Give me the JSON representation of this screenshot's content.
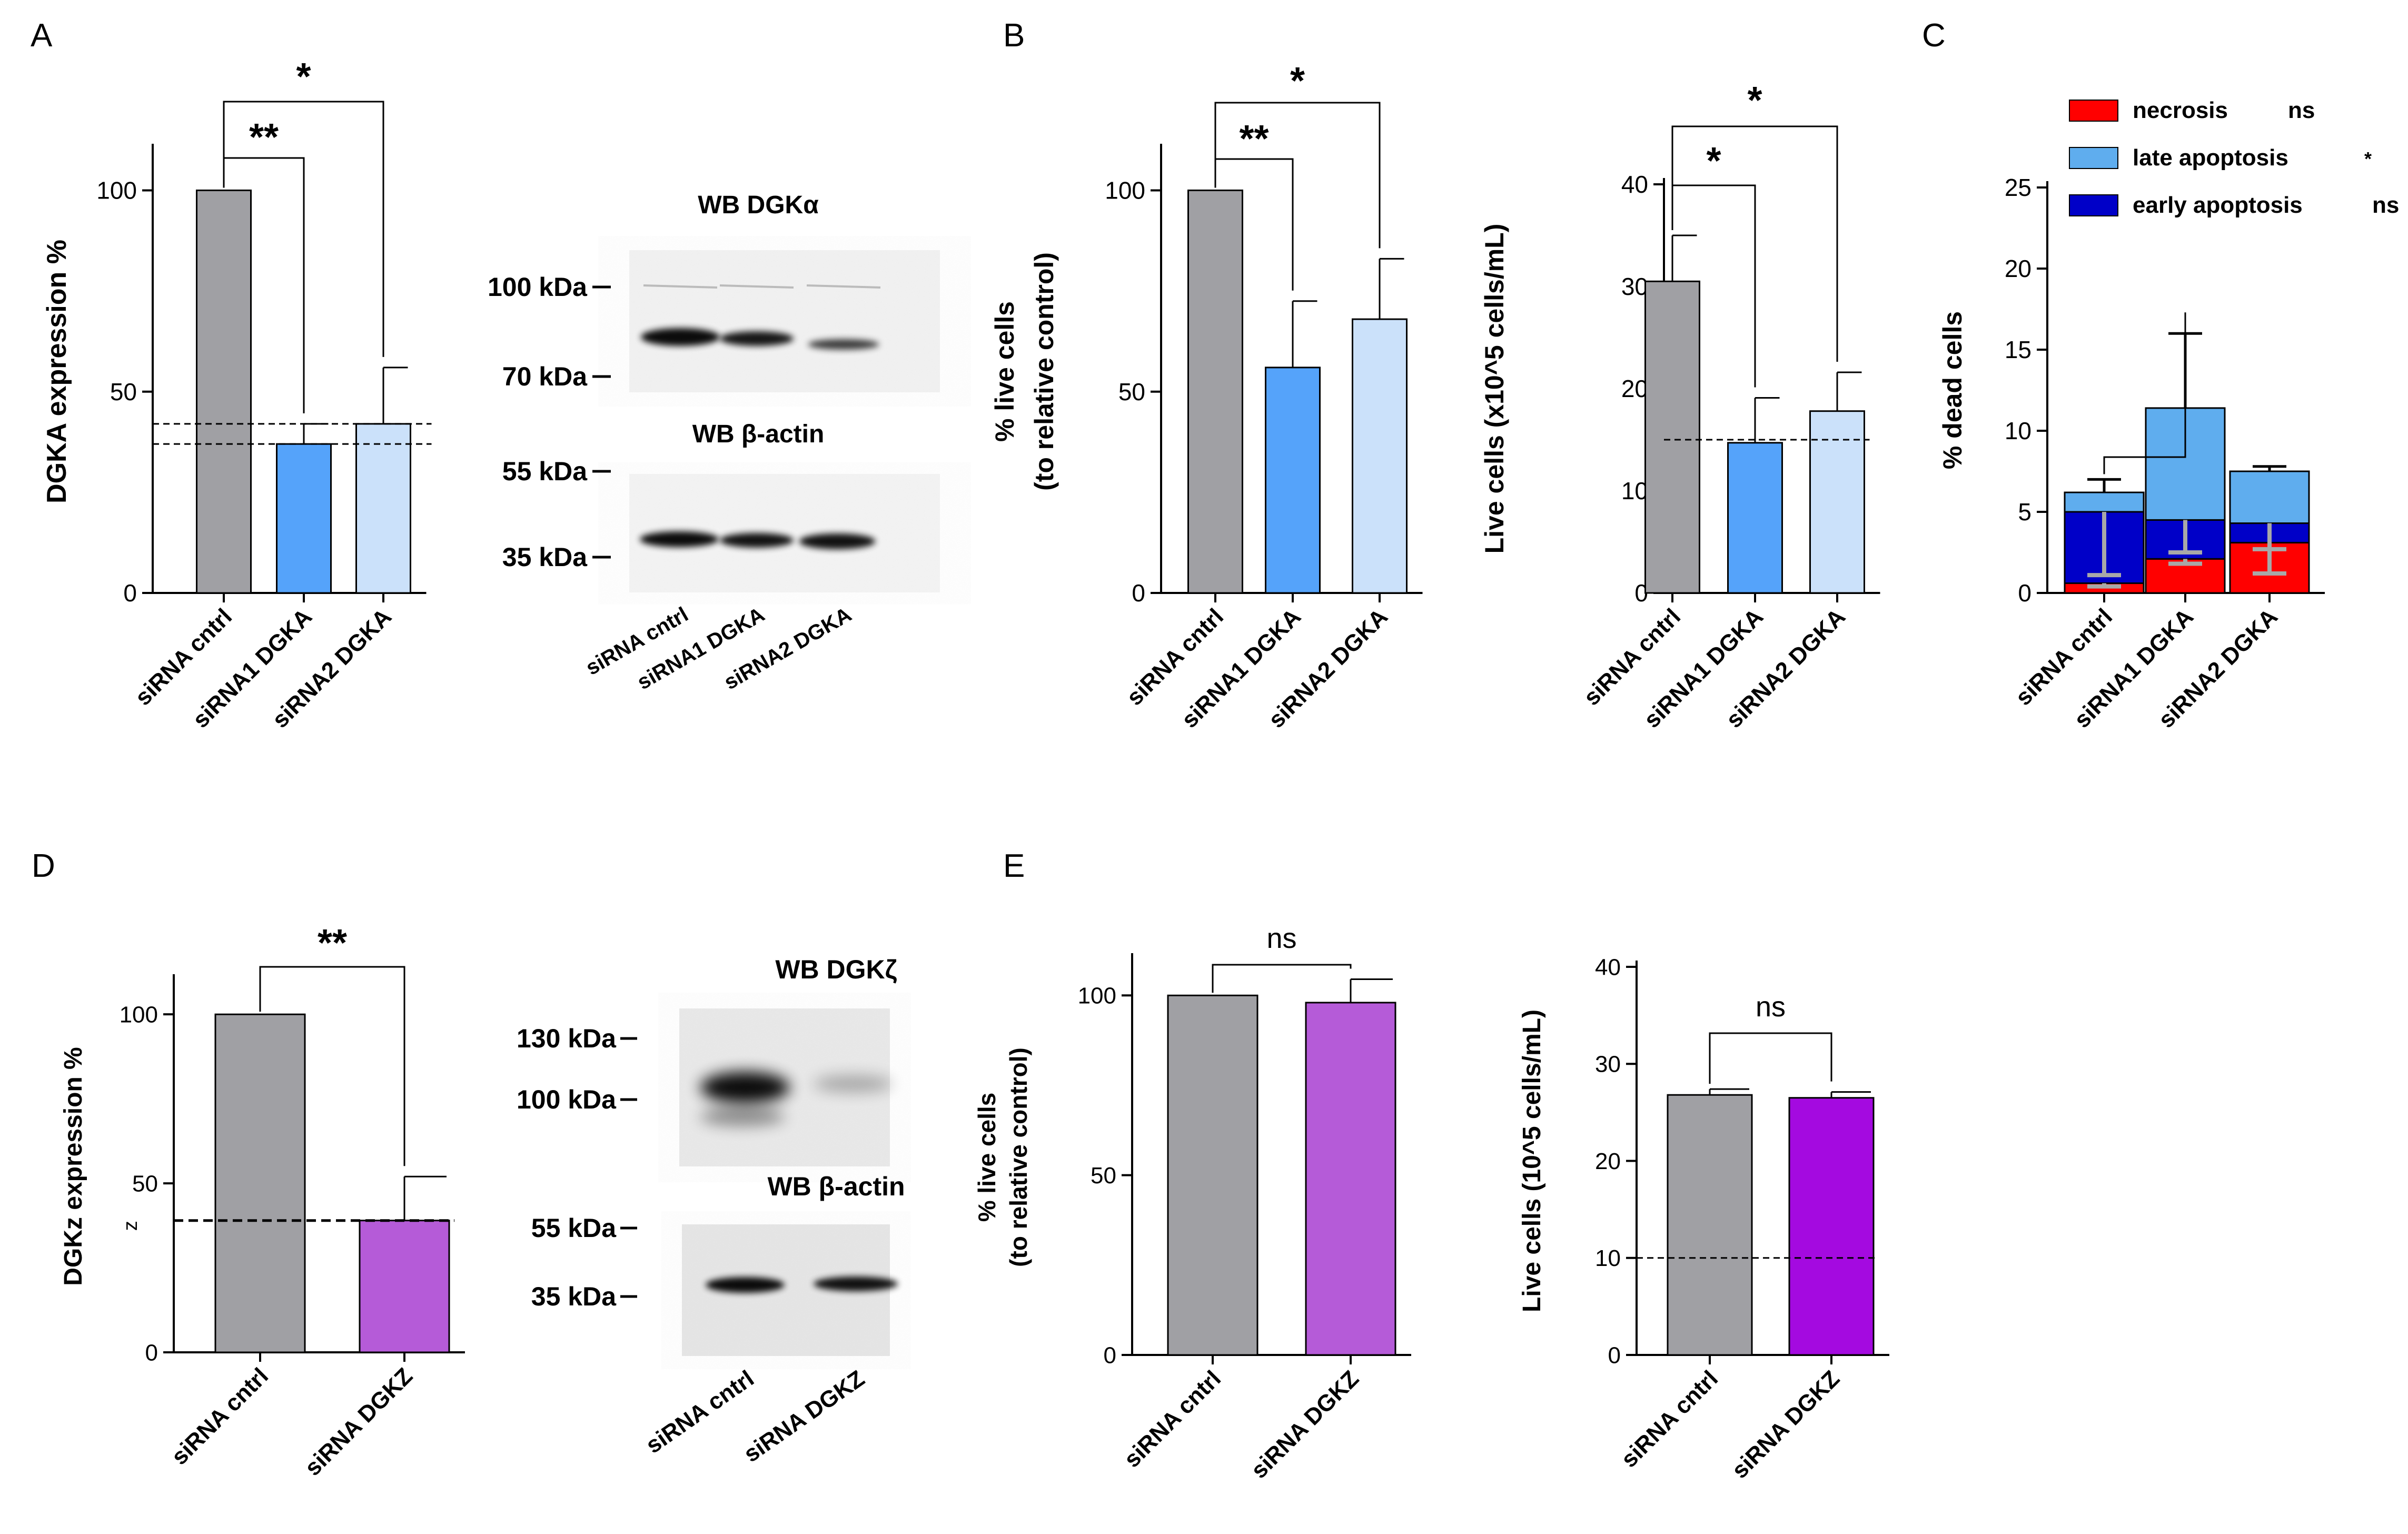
{
  "colors": {
    "gray": "#a0a0a4",
    "blue": "#55a3fa",
    "lightblue": "#cbe1fa",
    "purple": "#b55bd8",
    "violet": "#a40ae0",
    "red": "#ff0000",
    "lateapop": "#5fadee",
    "darkblue": "#0000c8"
  },
  "chart_data": [
    {
      "id": "A",
      "panel_label": "A",
      "type": "bar",
      "ylabel": "DGKA expression %",
      "ylim": [
        0,
        110
      ],
      "ticks": [
        0,
        50,
        100
      ],
      "categories": [
        "siRNA cntrl",
        "siRNA1 DGKA",
        "siRNA2 DGKA"
      ],
      "values": [
        100,
        37,
        42
      ],
      "errors": [
        0,
        5,
        14
      ],
      "bar_colors": [
        "gray",
        "blue",
        "lightblue"
      ],
      "reference_lines": [
        37,
        42
      ],
      "significance": [
        {
          "from": 0,
          "to": 1,
          "label": "**"
        },
        {
          "from": 0,
          "to": 2,
          "label": "*"
        }
      ]
    },
    {
      "id": "B1",
      "panel_label": "B",
      "type": "bar",
      "ylabel": "% live cells (to relative control)",
      "ylabel_lines": [
        "% live cells",
        "(to relative control)"
      ],
      "ylim": [
        0,
        110
      ],
      "ticks": [
        0,
        50,
        100
      ],
      "categories": [
        "siRNA cntrl",
        "siRNA1 DGKA",
        "siRNA2 DGKA"
      ],
      "values": [
        100,
        56,
        68
      ],
      "errors": [
        0,
        16.5,
        15
      ],
      "bar_colors": [
        "gray",
        "blue",
        "lightblue"
      ],
      "reference_lines": [],
      "significance": [
        {
          "from": 0,
          "to": 1,
          "label": "**"
        },
        {
          "from": 0,
          "to": 2,
          "label": "*"
        }
      ]
    },
    {
      "id": "B2",
      "panel_label": "",
      "type": "bar",
      "ylabel": "Live cells (x10^5 cells/mL)",
      "ylim": [
        0,
        40
      ],
      "ticks": [
        0,
        10,
        20,
        30,
        40
      ],
      "categories": [
        "siRNA cntrl",
        "siRNA1 DGKA",
        "siRNA2 DGKA"
      ],
      "values": [
        30.5,
        14.7,
        17.8
      ],
      "errors": [
        4.5,
        4.4,
        3.8
      ],
      "bar_colors": [
        "gray",
        "blue",
        "lightblue"
      ],
      "reference_lines": [
        15
      ],
      "significance": [
        {
          "from": 0,
          "to": 1,
          "label": "*"
        },
        {
          "from": 0,
          "to": 2,
          "label": "*"
        }
      ]
    },
    {
      "id": "C",
      "panel_label": "C",
      "type": "stacked_bar",
      "ylabel": "% dead cells",
      "ylim": [
        0,
        25
      ],
      "ticks": [
        0,
        5,
        10,
        15,
        20,
        25
      ],
      "categories": [
        "siRNA cntrl",
        "siRNA1 DGKA",
        "siRNA2 DGKA"
      ],
      "series": [
        {
          "name": "necrosis",
          "stat": "ns",
          "color": "red",
          "values": [
            0.6,
            2.1,
            3.1
          ],
          "errors": [
            0.2,
            0.3,
            0.4
          ]
        },
        {
          "name": "early apoptosis",
          "stat": "ns",
          "color": "darkblue",
          "values": [
            4.4,
            2.4,
            1.2
          ],
          "errors": [
            3.9,
            2.0,
            3.1
          ]
        },
        {
          "name": "late apoptosis",
          "stat": "*",
          "color": "lateapop",
          "values": [
            1.2,
            6.9,
            3.2
          ],
          "errors": [
            0.8,
            4.6,
            0.3
          ]
        }
      ],
      "legend_order": [
        0,
        2,
        1
      ],
      "legend_position": "top",
      "significance": [
        {
          "from": 0,
          "to": 1,
          "label": ""
        }
      ]
    },
    {
      "id": "D",
      "panel_label": "D",
      "type": "bar",
      "ylabel": "DGKz expression %",
      "ylim": [
        0,
        110
      ],
      "ticks": [
        0,
        50,
        100
      ],
      "extra_axis_label": "z",
      "categories": [
        "siRNA cntrl",
        "siRNA DGKZ"
      ],
      "values": [
        100,
        39
      ],
      "errors": [
        0,
        13
      ],
      "bar_colors": [
        "gray",
        "purple"
      ],
      "reference_lines": [
        39
      ],
      "significance": [
        {
          "from": 0,
          "to": 1,
          "label": "**"
        }
      ]
    },
    {
      "id": "E1",
      "panel_label": "E",
      "type": "bar",
      "ylabel": "% live cells (to relative control)",
      "ylabel_lines": [
        "% live cells",
        "(to relative control)"
      ],
      "ylim": [
        0,
        110
      ],
      "ticks": [
        0,
        50,
        100
      ],
      "categories": [
        "siRNA cntrl",
        "siRNA DGKZ"
      ],
      "values": [
        100,
        98
      ],
      "errors": [
        0,
        6.5
      ],
      "bar_colors": [
        "gray",
        "purple"
      ],
      "reference_lines": [],
      "significance": [
        {
          "from": 0,
          "to": 1,
          "label": "ns"
        }
      ]
    },
    {
      "id": "E2",
      "panel_label": "",
      "type": "bar",
      "ylabel": "Live cells (10^5 cells/mL)",
      "ylim": [
        0,
        40
      ],
      "ticks": [
        0,
        10,
        20,
        30,
        40
      ],
      "categories": [
        "siRNA cntrl",
        "siRNA DGKZ"
      ],
      "values": [
        26.8,
        26.5
      ],
      "errors": [
        0.6,
        0.6
      ],
      "bar_colors": [
        "gray",
        "violet"
      ],
      "reference_lines": [
        10
      ],
      "significance": [
        {
          "from": 0,
          "to": 1,
          "label": "ns"
        }
      ]
    }
  ],
  "blots": [
    {
      "id": "blotA",
      "title_top": "WB DGKα",
      "title_bottom": "WB β-actin",
      "markers_top": [
        "100 kDa",
        "70 kDa"
      ],
      "markers_bottom": [
        "55 kDa",
        "35 kDa"
      ],
      "lanes": [
        "siRNA cntrl",
        "siRNA1 DGKA",
        "siRNA2 DGKA"
      ]
    },
    {
      "id": "blotD",
      "title_top": "WB DGKζ",
      "title_bottom": "WB β-actin",
      "markers_top": [
        "130 kDa",
        "100 kDa"
      ],
      "markers_bottom": [
        "55 kDa",
        "35 kDa"
      ],
      "lanes": [
        "siRNA cntrl",
        "siRNA DGKZ"
      ]
    }
  ]
}
